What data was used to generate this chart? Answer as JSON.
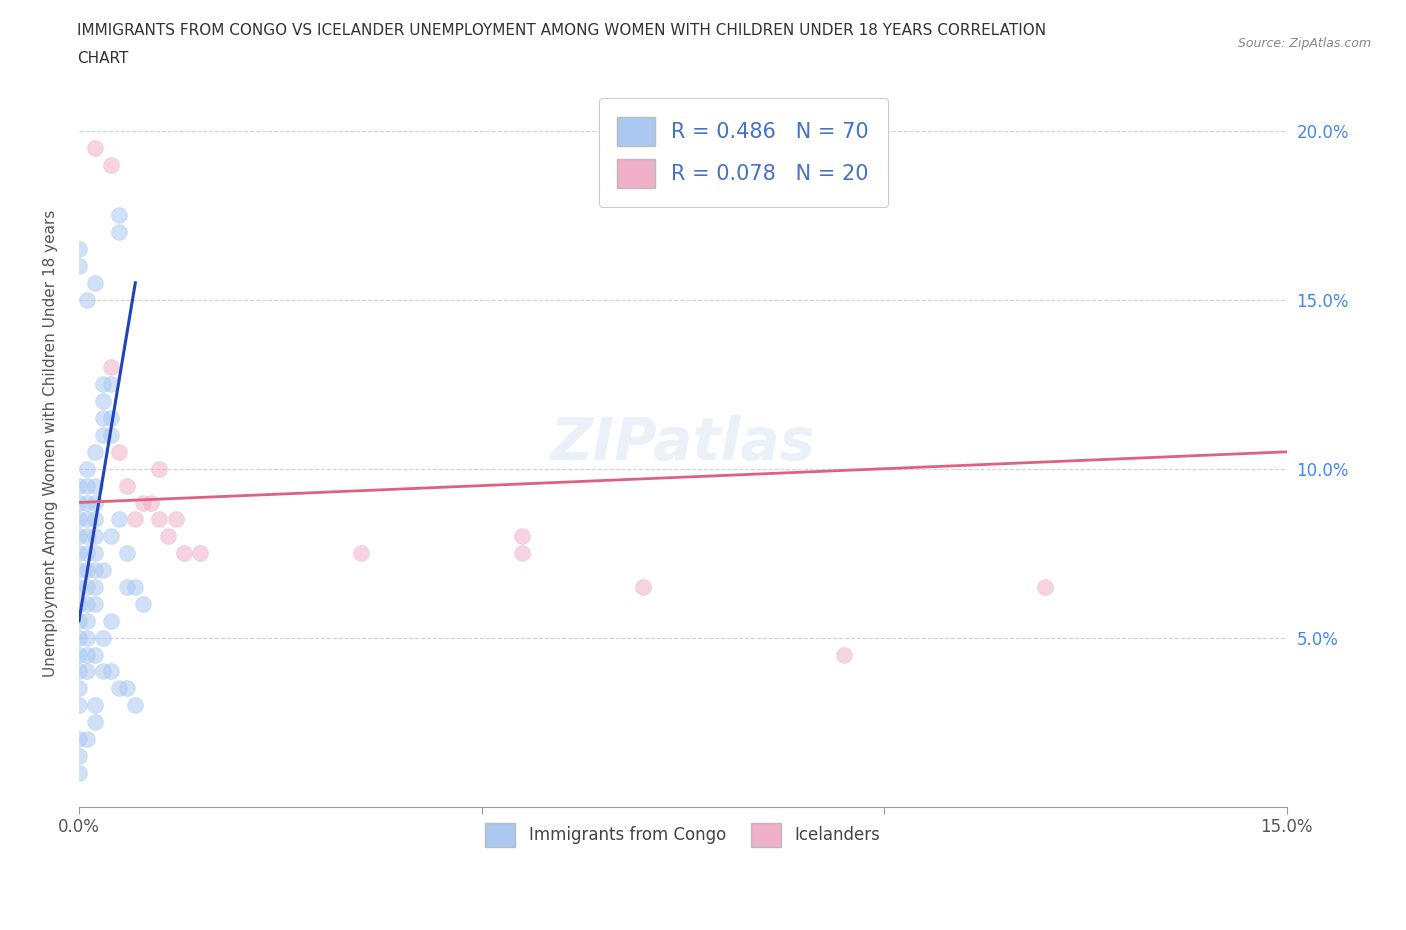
{
  "title_line1": "IMMIGRANTS FROM CONGO VS ICELANDER UNEMPLOYMENT AMONG WOMEN WITH CHILDREN UNDER 18 YEARS CORRELATION",
  "title_line2": "CHART",
  "source": "Source: ZipAtlas.com",
  "ylabel": "Unemployment Among Women with Children Under 18 years",
  "xlim": [
    0.0,
    0.15
  ],
  "ylim": [
    0.0,
    0.215
  ],
  "xticks": [
    0.0,
    0.05,
    0.1,
    0.15
  ],
  "xtick_labels": [
    "0.0%",
    "",
    "",
    "15.0%"
  ],
  "yticks": [
    0.05,
    0.1,
    0.15,
    0.2
  ],
  "ytick_labels": [
    "5.0%",
    "10.0%",
    "15.0%",
    "20.0%"
  ],
  "bottom_legend": [
    "Immigrants from Congo",
    "Icelanders"
  ],
  "congo_color": "#aac8f0",
  "iceland_color": "#f0b0c8",
  "congo_line_color": "#2244bb",
  "iceland_line_color": "#e06080",
  "watermark": "ZIPatlas",
  "R_congo": 0.486,
  "N_congo": 70,
  "R_iceland": 0.078,
  "N_iceland": 20,
  "congo_line_x0": 0.0,
  "congo_line_y0": 0.055,
  "congo_line_x1": 0.007,
  "congo_line_y1": 0.155,
  "iceland_line_x0": 0.0,
  "iceland_line_y0": 0.09,
  "iceland_line_x1": 0.15,
  "iceland_line_y1": 0.105,
  "congo_points": [
    [
      0.0,
      0.165
    ],
    [
      0.0,
      0.16
    ],
    [
      0.005,
      0.175
    ],
    [
      0.005,
      0.17
    ],
    [
      0.002,
      0.155
    ],
    [
      0.001,
      0.15
    ],
    [
      0.003,
      0.125
    ],
    [
      0.003,
      0.12
    ],
    [
      0.004,
      0.125
    ],
    [
      0.003,
      0.115
    ],
    [
      0.003,
      0.11
    ],
    [
      0.004,
      0.115
    ],
    [
      0.004,
      0.11
    ],
    [
      0.001,
      0.1
    ],
    [
      0.002,
      0.105
    ],
    [
      0.0,
      0.095
    ],
    [
      0.001,
      0.095
    ],
    [
      0.002,
      0.095
    ],
    [
      0.0,
      0.09
    ],
    [
      0.001,
      0.09
    ],
    [
      0.002,
      0.09
    ],
    [
      0.0,
      0.085
    ],
    [
      0.001,
      0.085
    ],
    [
      0.002,
      0.085
    ],
    [
      0.0,
      0.08
    ],
    [
      0.001,
      0.08
    ],
    [
      0.002,
      0.08
    ],
    [
      0.0,
      0.075
    ],
    [
      0.001,
      0.075
    ],
    [
      0.002,
      0.075
    ],
    [
      0.0,
      0.07
    ],
    [
      0.001,
      0.07
    ],
    [
      0.002,
      0.07
    ],
    [
      0.0,
      0.065
    ],
    [
      0.001,
      0.065
    ],
    [
      0.002,
      0.065
    ],
    [
      0.0,
      0.06
    ],
    [
      0.001,
      0.06
    ],
    [
      0.002,
      0.06
    ],
    [
      0.0,
      0.055
    ],
    [
      0.001,
      0.055
    ],
    [
      0.0,
      0.05
    ],
    [
      0.001,
      0.05
    ],
    [
      0.0,
      0.045
    ],
    [
      0.001,
      0.045
    ],
    [
      0.0,
      0.04
    ],
    [
      0.001,
      0.04
    ],
    [
      0.0,
      0.035
    ],
    [
      0.0,
      0.03
    ],
    [
      0.0,
      0.02
    ],
    [
      0.0,
      0.015
    ],
    [
      0.0,
      0.01
    ],
    [
      0.001,
      0.02
    ],
    [
      0.002,
      0.025
    ],
    [
      0.003,
      0.07
    ],
    [
      0.004,
      0.08
    ],
    [
      0.005,
      0.085
    ],
    [
      0.006,
      0.075
    ],
    [
      0.006,
      0.065
    ],
    [
      0.007,
      0.065
    ],
    [
      0.008,
      0.06
    ],
    [
      0.004,
      0.055
    ],
    [
      0.003,
      0.05
    ],
    [
      0.002,
      0.045
    ],
    [
      0.003,
      0.04
    ],
    [
      0.004,
      0.04
    ],
    [
      0.005,
      0.035
    ],
    [
      0.006,
      0.035
    ],
    [
      0.007,
      0.03
    ],
    [
      0.002,
      0.03
    ]
  ],
  "iceland_points": [
    [
      0.002,
      0.195
    ],
    [
      0.004,
      0.19
    ],
    [
      0.004,
      0.13
    ],
    [
      0.005,
      0.105
    ],
    [
      0.006,
      0.095
    ],
    [
      0.008,
      0.09
    ],
    [
      0.007,
      0.085
    ],
    [
      0.009,
      0.09
    ],
    [
      0.01,
      0.1
    ],
    [
      0.01,
      0.085
    ],
    [
      0.011,
      0.08
    ],
    [
      0.012,
      0.085
    ],
    [
      0.013,
      0.075
    ],
    [
      0.015,
      0.075
    ],
    [
      0.035,
      0.075
    ],
    [
      0.055,
      0.075
    ],
    [
      0.055,
      0.08
    ],
    [
      0.07,
      0.065
    ],
    [
      0.095,
      0.045
    ],
    [
      0.12,
      0.065
    ]
  ]
}
